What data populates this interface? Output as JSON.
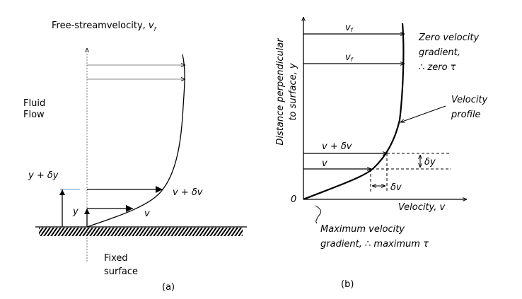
{
  "panel_a": {
    "title": "Free-streamvelocity, ",
    "title_symbol": "v",
    "title_subscript": "f",
    "fluid_flow": [
      "Fluid",
      "Flow"
    ],
    "y_plus_dy": "y + δy",
    "y": "y",
    "v_plus_dv": "v + δv",
    "v": "v",
    "fixed_surface": [
      "Fixed",
      "surface"
    ],
    "caption": "(a)",
    "accent_color": "#5b9bd5"
  },
  "panel_b": {
    "y_axis_label": [
      "Distance perpendicular",
      "to surface, y"
    ],
    "x_axis_label": "Velocity, v",
    "origin": "0",
    "vf_label": "v",
    "vf_sub": "f",
    "v_plus_dv": "v + δv",
    "v": "v",
    "dy": "δy",
    "dv": "δv",
    "zero_gradient": [
      "Zero velocity",
      "gradient,",
      "∴ zero τ"
    ],
    "velocity_profile": [
      "Velocity",
      "profile"
    ],
    "max_gradient": [
      "Maximum velocity",
      "gradient, ∴ maximum τ"
    ],
    "caption": "(b)"
  }
}
